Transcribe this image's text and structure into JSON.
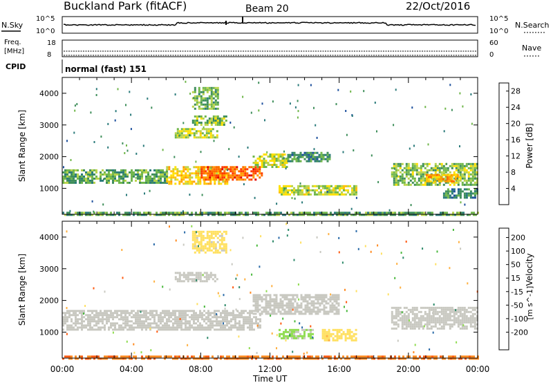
{
  "header": {
    "title": "Buckland Park (fitACF)",
    "beam": "Beam 20",
    "date": "22/Oct/2016"
  },
  "top_panels": {
    "nsky_label": "N.Sky",
    "nsky_left_ticks": [
      "10^5",
      "10^0"
    ],
    "nsearch_label": "N.Search",
    "nsearch_right_ticks": [
      "10^5",
      "10^0"
    ],
    "freq_label_1": "Freq.",
    "freq_label_2": "[MHz]",
    "freq_ticks": [
      "18",
      "8"
    ],
    "nave_label": "Nave",
    "nave_ticks": [
      "60",
      "0"
    ],
    "cpid_label": "CPID",
    "cpid_value": "normal (fast) 151"
  },
  "x_axis": {
    "label": "Time UT",
    "ticks": [
      "00:00",
      "04:00",
      "08:00",
      "12:00",
      "16:00",
      "20:00",
      "00:00"
    ]
  },
  "y_axis": {
    "label": "Slant Range [km]",
    "ticks": [
      "1000",
      "2000",
      "3000",
      "4000"
    ]
  },
  "power_colorbar": {
    "label": "Power [dB]",
    "ticks": [
      "4",
      "8",
      "12",
      "16",
      "20",
      "24",
      "28"
    ],
    "colors": [
      "#0000ff",
      "#1c4f9c",
      "#2a7a7a",
      "#3e8e5a",
      "#6fb64a",
      "#b9d34a",
      "#ffe000",
      "#ffc000",
      "#ff9a00",
      "#ff6a00",
      "#ff3a00",
      "#e00000"
    ]
  },
  "velocity_colorbar": {
    "label_main": "Velocity",
    "label_units": "[m s^-1]",
    "ticks": [
      "200",
      "100",
      "50",
      "15",
      "-15",
      "-50",
      "-100",
      "-200"
    ],
    "colors": [
      "#1c3aa8",
      "#2a6aa8",
      "#2e8a6a",
      "#49b83c",
      "#8fdc50",
      "#c8c8c0",
      "#ffe060",
      "#ffb040",
      "#ff8a20",
      "#ff5a10",
      "#e00000"
    ]
  },
  "chart_data": [
    {
      "type": "heatmap",
      "title": "Power",
      "xlabel": "Time UT",
      "ylabel": "Slant Range [km]",
      "xlim": [
        0,
        24
      ],
      "ylim": [
        180,
        4500
      ],
      "colorbar_label": "Power [dB]",
      "color_range": [
        0,
        30
      ],
      "regions": [
        {
          "t0": 0.0,
          "t1": 6.0,
          "r0": 1150,
          "r1": 1600,
          "level": 10
        },
        {
          "t0": 6.0,
          "t1": 9.5,
          "r0": 1150,
          "r1": 1700,
          "level": 17
        },
        {
          "t0": 8.0,
          "t1": 11.5,
          "r0": 1250,
          "r1": 1700,
          "level": 24
        },
        {
          "t0": 11.0,
          "t1": 13.0,
          "r0": 1700,
          "r1": 2100,
          "level": 14
        },
        {
          "t0": 13.0,
          "t1": 15.5,
          "r0": 1850,
          "r1": 2150,
          "level": 8
        },
        {
          "t0": 6.5,
          "t1": 9.0,
          "r0": 2600,
          "r1": 2900,
          "level": 14
        },
        {
          "t0": 7.5,
          "t1": 9.5,
          "r0": 3000,
          "r1": 3300,
          "level": 12
        },
        {
          "t0": 7.5,
          "t1": 9.0,
          "r0": 3500,
          "r1": 4200,
          "level": 11
        },
        {
          "t0": 12.5,
          "t1": 17.0,
          "r0": 800,
          "r1": 1100,
          "level": 14
        },
        {
          "t0": 19.0,
          "t1": 24.0,
          "r0": 1100,
          "r1": 1800,
          "level": 12
        },
        {
          "t0": 21.0,
          "t1": 23.0,
          "r0": 1250,
          "r1": 1450,
          "level": 20
        },
        {
          "t0": 22.0,
          "t1": 24.0,
          "r0": 700,
          "r1": 1000,
          "level": 8
        },
        {
          "t0": 0.0,
          "t1": 24.0,
          "r0": 180,
          "r1": 260,
          "level": 10
        }
      ]
    },
    {
      "type": "heatmap",
      "title": "Velocity",
      "xlabel": "Time UT",
      "ylabel": "Slant Range [km]",
      "xlim": [
        0,
        24
      ],
      "ylim": [
        180,
        4500
      ],
      "colorbar_label": "Velocity [m s^-1]",
      "color_range": [
        -250,
        250
      ],
      "regions": [
        {
          "t0": 0.0,
          "t1": 11.5,
          "r0": 1100,
          "r1": 1700,
          "velocity": 0
        },
        {
          "t0": 11.0,
          "t1": 16.0,
          "r0": 1600,
          "r1": 2200,
          "velocity": 0
        },
        {
          "t0": 6.5,
          "t1": 9.0,
          "r0": 2600,
          "r1": 2900,
          "velocity": 0
        },
        {
          "t0": 7.5,
          "t1": 9.5,
          "r0": 3500,
          "r1": 4200,
          "velocity": -40
        },
        {
          "t0": 12.5,
          "t1": 14.5,
          "r0": 800,
          "r1": 1100,
          "velocity": 30
        },
        {
          "t0": 15.0,
          "t1": 17.0,
          "r0": 750,
          "r1": 1100,
          "velocity": -50
        },
        {
          "t0": 19.0,
          "t1": 24.0,
          "r0": 1100,
          "r1": 1800,
          "velocity": 0
        },
        {
          "t0": 0.0,
          "t1": 24.0,
          "r0": 180,
          "r1": 260,
          "velocity": -150
        }
      ]
    }
  ]
}
